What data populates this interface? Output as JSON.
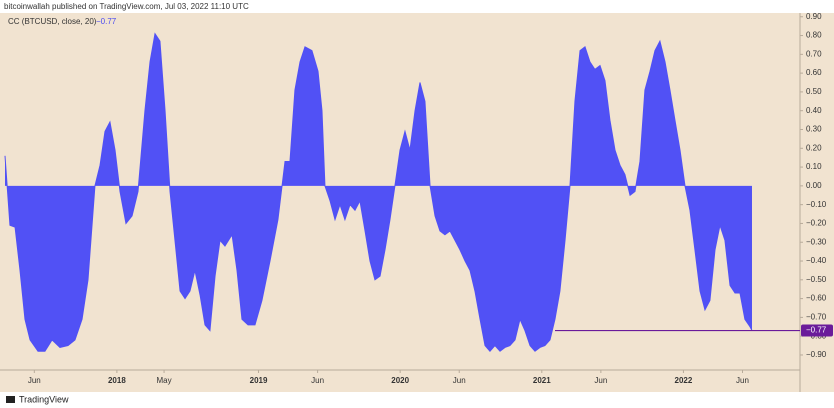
{
  "header": "bitcoinwallah published on TradingView.com, Jul 03, 2022 11:10 UTC",
  "footer": "TradingView",
  "chart_data": {
    "type": "area",
    "indicator_label": "CC (BTCUSD, close, 20)",
    "last_value": {
      "value": -0.77,
      "label": "−0.77"
    },
    "color": "#5151f5",
    "last_value_color": "#6a1b9a",
    "x": [
      2017.21,
      2017.245,
      2017.281,
      2017.316,
      2017.351,
      2017.387,
      2017.443,
      2017.492,
      2017.542,
      2017.598,
      2017.655,
      2017.704,
      2017.754,
      2017.796,
      2017.845,
      2017.881,
      2017.916,
      2017.951,
      2017.987,
      2018.022,
      2018.064,
      2018.107,
      2018.149,
      2018.198,
      2018.234,
      2018.269,
      2018.304,
      2018.34,
      2018.375,
      2018.41,
      2018.446,
      2018.481,
      2018.516,
      2018.551,
      2018.587,
      2018.622,
      2018.657,
      2018.693,
      2018.728,
      2018.763,
      2018.813,
      2018.848,
      2018.883,
      2018.926,
      2018.975,
      2019.024,
      2019.081,
      2019.137,
      2019.187,
      2019.222,
      2019.257,
      2019.293,
      2019.328,
      2019.377,
      2019.42,
      2019.448,
      2019.469,
      2019.505,
      2019.54,
      2019.575,
      2019.61,
      2019.646,
      2019.681,
      2019.716,
      2019.752,
      2019.787,
      2019.822,
      2019.858,
      2019.893,
      2019.928,
      2019.963,
      2019.999,
      2020.034,
      2020.069,
      2020.105,
      2020.14,
      2020.175,
      2020.211,
      2020.246,
      2020.281,
      2020.316,
      2020.352,
      2020.387,
      2020.422,
      2020.458,
      2020.493,
      2020.528,
      2020.564,
      2020.599,
      2020.634,
      2020.669,
      2020.705,
      2020.74,
      2020.775,
      2020.811,
      2020.846,
      2020.881,
      2020.917,
      2020.952,
      2020.987,
      2021.022,
      2021.058,
      2021.093,
      2021.128,
      2021.164,
      2021.199,
      2021.234,
      2021.27,
      2021.305,
      2021.34,
      2021.375,
      2021.411,
      2021.446,
      2021.481,
      2021.517,
      2021.552,
      2021.587,
      2021.623,
      2021.658,
      2021.693,
      2021.728,
      2021.764,
      2021.799,
      2021.834,
      2021.87,
      2021.905,
      2021.94,
      2021.976,
      2022.011,
      2022.046,
      2022.081,
      2022.117,
      2022.152,
      2022.187,
      2022.223,
      2022.258,
      2022.293,
      2022.329,
      2022.364,
      2022.399,
      2022.434,
      2022.47,
      2022.484
    ],
    "values": [
      0.16,
      -0.21,
      -0.22,
      -0.45,
      -0.71,
      -0.82,
      -0.88,
      -0.88,
      -0.82,
      -0.86,
      -0.85,
      -0.82,
      -0.71,
      -0.5,
      0,
      0.11,
      0.29,
      0.34,
      0.19,
      -0.03,
      -0.2,
      -0.16,
      -0.03,
      0.4,
      0.66,
      0.81,
      0.77,
      0.4,
      -0.03,
      -0.29,
      -0.56,
      -0.6,
      -0.56,
      -0.45,
      -0.58,
      -0.74,
      -0.77,
      -0.48,
      -0.29,
      -0.32,
      -0.26,
      -0.45,
      -0.71,
      -0.74,
      -0.74,
      -0.61,
      -0.4,
      -0.18,
      0.13,
      0.13,
      0.51,
      0.66,
      0.74,
      0.72,
      0.61,
      0.4,
      0,
      -0.08,
      -0.18,
      -0.1,
      -0.18,
      -0.1,
      -0.13,
      -0.08,
      -0.24,
      -0.4,
      -0.5,
      -0.48,
      -0.34,
      -0.18,
      0,
      0.19,
      0.29,
      0.19,
      0.4,
      0.55,
      0.45,
      0,
      -0.16,
      -0.24,
      -0.26,
      -0.24,
      -0.29,
      -0.34,
      -0.4,
      -0.45,
      -0.56,
      -0.71,
      -0.85,
      -0.88,
      -0.85,
      -0.88,
      -0.86,
      -0.85,
      -0.82,
      -0.71,
      -0.77,
      -0.85,
      -0.88,
      -0.86,
      -0.85,
      -0.82,
      -0.71,
      -0.56,
      -0.29,
      0,
      0.45,
      0.72,
      0.74,
      0.66,
      0.62,
      0.64,
      0.56,
      0.35,
      0.19,
      0.11,
      0.06,
      -0.05,
      -0.03,
      0.13,
      0.51,
      0.61,
      0.72,
      0.77,
      0.66,
      0.51,
      0.35,
      0.19,
      0,
      -0.13,
      -0.34,
      -0.56,
      -0.66,
      -0.61,
      -0.34,
      -0.21,
      -0.29,
      -0.53,
      -0.57,
      -0.57,
      -0.71,
      -0.75,
      -0.77
    ],
    "xlim": [
      2017.21,
      2022.823
    ],
    "xticks": [
      {
        "value": 2017.417,
        "label": "Jun"
      },
      2018,
      {
        "value": 2018.333,
        "label": "May"
      },
      2019,
      {
        "value": 2019.417,
        "label": "Jun"
      },
      2020,
      {
        "value": 2020.417,
        "label": "Jun"
      },
      2021,
      {
        "value": 2021.417,
        "label": "Jun"
      },
      2022,
      {
        "value": 2022.417,
        "label": "Jun"
      }
    ],
    "ylim": [
      -0.98,
      0.92
    ],
    "yticks": [
      {
        "value": 0.9,
        "label": "0.90"
      },
      {
        "value": 0.8,
        "label": "0.80"
      },
      {
        "value": 0.7,
        "label": "0.70"
      },
      {
        "value": 0.6,
        "label": "0.60"
      },
      {
        "value": 0.5,
        "label": "0.50"
      },
      {
        "value": 0.4,
        "label": "0.40"
      },
      {
        "value": 0.3,
        "label": "0.30"
      },
      {
        "value": 0.2,
        "label": "0.20"
      },
      {
        "value": 0.1,
        "label": "0.10"
      },
      {
        "value": 0,
        "label": "0.00"
      },
      {
        "value": -0.1,
        "label": "−0.10"
      },
      {
        "value": -0.2,
        "label": "−0.20"
      },
      {
        "value": -0.3,
        "label": "−0.30"
      },
      {
        "value": -0.4,
        "label": "−0.40"
      },
      {
        "value": -0.5,
        "label": "−0.50"
      },
      {
        "value": -0.6,
        "label": "−0.60"
      },
      {
        "value": -0.7,
        "label": "−0.70"
      },
      {
        "value": -0.8,
        "label": "−0.80"
      },
      {
        "value": -0.9,
        "label": "−0.90"
      }
    ]
  }
}
